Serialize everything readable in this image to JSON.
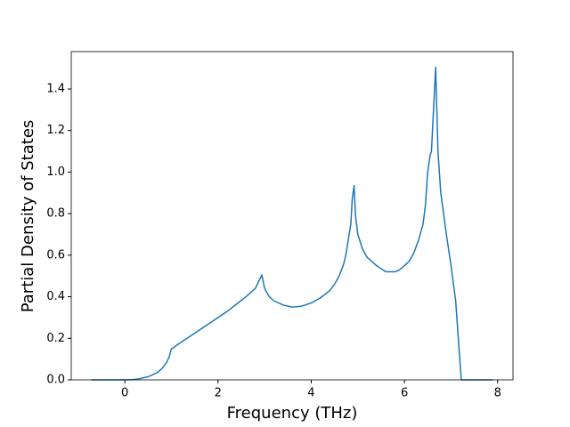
{
  "chart_data": {
    "type": "line",
    "xlabel": "Frequency (THz)",
    "ylabel": "Partial Density of States",
    "color": "#1f77b4",
    "x": [
      -0.72,
      0,
      0.2,
      0.3,
      0.5,
      0.7,
      0.8,
      0.9,
      0.95,
      1.0,
      1.05,
      1.1,
      1.2,
      1.4,
      1.6,
      1.8,
      2.0,
      2.2,
      2.4,
      2.6,
      2.8,
      2.94,
      3.0,
      3.1,
      3.2,
      3.4,
      3.6,
      3.8,
      4.0,
      4.2,
      4.4,
      4.5,
      4.6,
      4.7,
      4.75,
      4.8,
      4.85,
      4.88,
      4.92,
      4.95,
      5.0,
      5.1,
      5.2,
      5.4,
      5.6,
      5.8,
      5.9,
      6.0,
      6.1,
      6.2,
      6.3,
      6.4,
      6.45,
      6.5,
      6.55,
      6.58,
      6.62,
      6.67,
      6.72,
      6.78,
      6.9,
      7.0,
      7.1,
      7.15,
      7.22,
      7.9
    ],
    "values": [
      0,
      0,
      0.002,
      0.005,
      0.015,
      0.035,
      0.055,
      0.085,
      0.11,
      0.15,
      0.155,
      0.165,
      0.18,
      0.21,
      0.24,
      0.27,
      0.3,
      0.33,
      0.365,
      0.4,
      0.44,
      0.505,
      0.44,
      0.4,
      0.38,
      0.36,
      0.35,
      0.355,
      0.37,
      0.395,
      0.43,
      0.46,
      0.5,
      0.56,
      0.61,
      0.68,
      0.75,
      0.87,
      0.935,
      0.79,
      0.7,
      0.63,
      0.59,
      0.55,
      0.52,
      0.52,
      0.53,
      0.55,
      0.57,
      0.61,
      0.67,
      0.75,
      0.84,
      1.0,
      1.08,
      1.1,
      1.28,
      1.505,
      1.1,
      0.9,
      0.7,
      0.55,
      0.38,
      0.22,
      0,
      0
    ],
    "xlim": [
      -1.15,
      8.33
    ],
    "ylim": [
      0,
      1.58
    ],
    "xticks": [
      0,
      2,
      4,
      6,
      8
    ],
    "yticks": [
      {
        "value": 0,
        "label": "0.0"
      },
      0.2,
      0.4,
      0.6,
      0.8,
      {
        "value": 1,
        "label": "1.0"
      },
      1.2,
      1.4
    ]
  }
}
